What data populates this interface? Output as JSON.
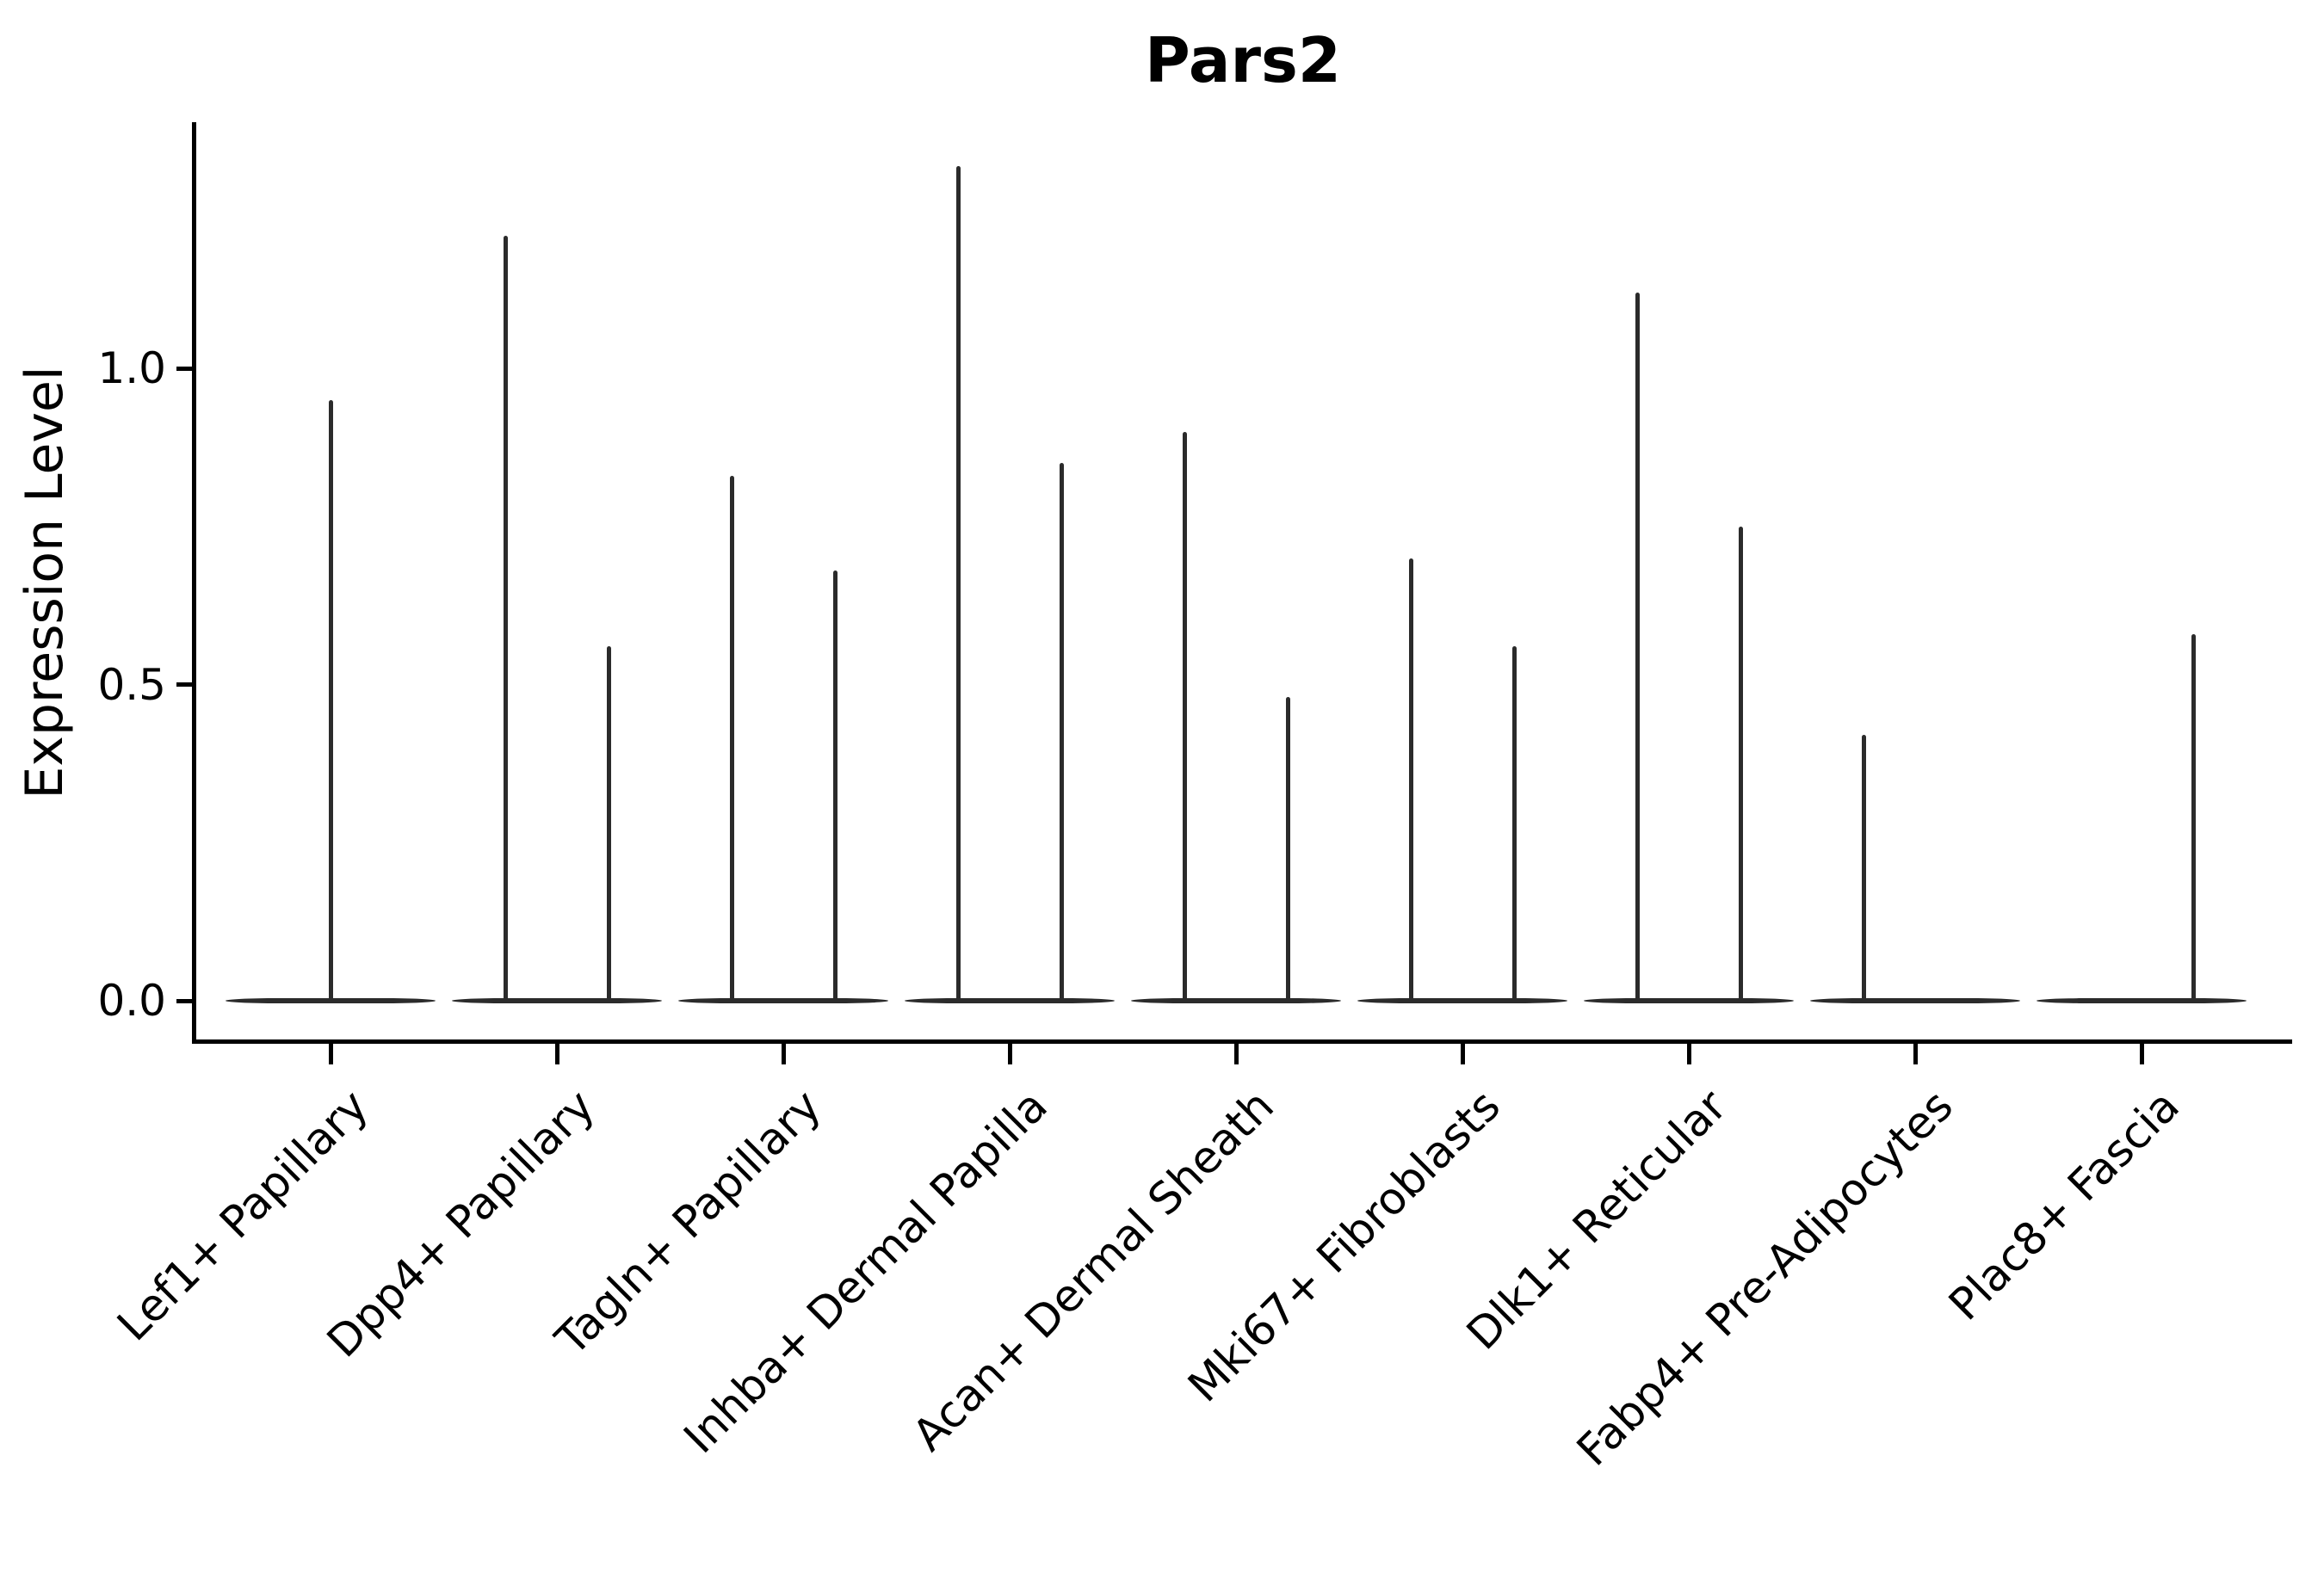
{
  "figure": {
    "title": "Pars2",
    "background": "#ffffff"
  },
  "axes": {
    "ylabel": "Expression Level",
    "xlabel": ""
  },
  "colors": {
    "violin": "#2b2b2b",
    "axis": "#000000",
    "text": "#000000",
    "background": "#ffffff"
  },
  "chart_data": {
    "type": "violin",
    "title": "Pars2",
    "ylabel": "Expression Level",
    "xlabel": "",
    "ylim": [
      0,
      1.39
    ],
    "yticks": [
      {
        "value": 0.0,
        "label": "0.0"
      },
      {
        "value": 0.5,
        "label": "0.5"
      },
      {
        "value": 1.0,
        "label": "1.0"
      }
    ],
    "grid": false,
    "legend": null,
    "x_tick_rotation": 45,
    "description": "Split violin plot of Pars2 expression; violin bodies are flattened at 0 (most cells zero) with thin spikes reaching each group's maximum expression value.",
    "baseline": {
      "value": 0.0
    },
    "categories": [
      {
        "label": "Lef1+ Papillary",
        "spikes": [
          {
            "slot": "center",
            "max": 0.95
          }
        ]
      },
      {
        "label": "Dpp4+ Papillary",
        "spikes": [
          {
            "slot": "left",
            "max": 1.21
          },
          {
            "slot": "right",
            "max": 0.56
          }
        ]
      },
      {
        "label": "Tagln+ Papillary",
        "spikes": [
          {
            "slot": "left",
            "max": 0.83
          },
          {
            "slot": "right",
            "max": 0.68
          }
        ]
      },
      {
        "label": "Inhba+ Dermal Papilla",
        "spikes": [
          {
            "slot": "left",
            "max": 1.32
          },
          {
            "slot": "right",
            "max": 0.85
          }
        ]
      },
      {
        "label": "Acan+ Dermal Sheath",
        "spikes": [
          {
            "slot": "left",
            "max": 0.9
          },
          {
            "slot": "right",
            "max": 0.48
          }
        ]
      },
      {
        "label": "Mki67+ Fibroblasts",
        "spikes": [
          {
            "slot": "left",
            "max": 0.7
          },
          {
            "slot": "right",
            "max": 0.56
          }
        ]
      },
      {
        "label": "Dlk1+ Reticular",
        "spikes": [
          {
            "slot": "left",
            "max": 1.12
          },
          {
            "slot": "right",
            "max": 0.75
          }
        ]
      },
      {
        "label": "Fabp4+ Pre-Adipocytes",
        "spikes": [
          {
            "slot": "left",
            "max": 0.42
          }
        ]
      },
      {
        "label": "Plac8+ Fascia",
        "spikes": [
          {
            "slot": "right",
            "max": 0.58
          }
        ]
      }
    ]
  }
}
